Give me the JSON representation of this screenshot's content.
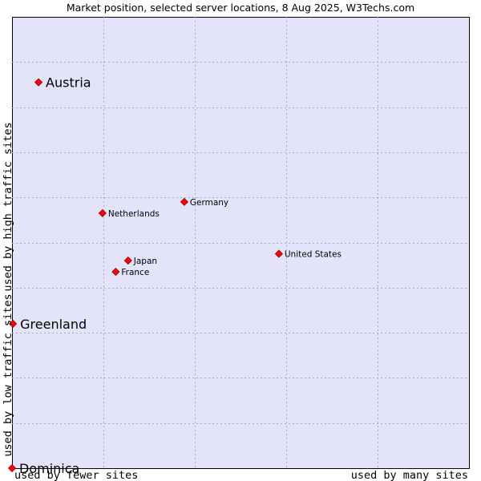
{
  "chart_data": {
    "type": "scatter",
    "title": "Market position, selected server locations, 8 Aug 2025, W3Techs.com",
    "xlabel_left": "used by fewer sites",
    "xlabel_right": "used by many sites",
    "ylabel_top": "used by high traffic sites",
    "ylabel_bottom": "used by low traffic sites",
    "xlim": [
      0,
      100
    ],
    "ylim": [
      0,
      100
    ],
    "grid": true,
    "points": [
      {
        "name": "Austria",
        "x": 5.8,
        "y": 85.5,
        "highlight": true
      },
      {
        "name": "Germany",
        "x": 37.7,
        "y": 59.0,
        "highlight": false
      },
      {
        "name": "Netherlands",
        "x": 19.8,
        "y": 56.5,
        "highlight": false
      },
      {
        "name": "United States",
        "x": 58.4,
        "y": 47.5,
        "highlight": false
      },
      {
        "name": "Japan",
        "x": 25.4,
        "y": 46.0,
        "highlight": false
      },
      {
        "name": "France",
        "x": 22.7,
        "y": 43.5,
        "highlight": false
      },
      {
        "name": "Greenland",
        "x": 0.2,
        "y": 32.0,
        "highlight": true
      },
      {
        "name": "Dominica",
        "x": 0.0,
        "y": 0.0,
        "highlight": true
      }
    ]
  }
}
